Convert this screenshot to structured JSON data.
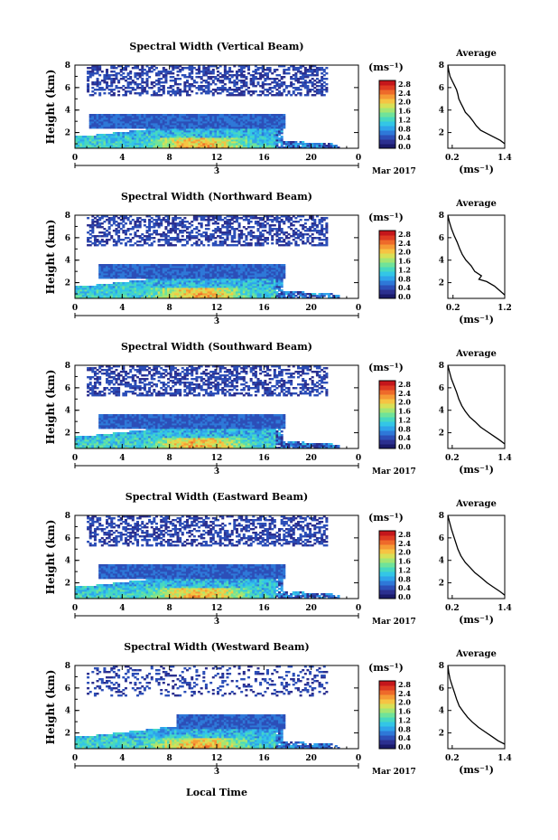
{
  "figure": {
    "common_xlabel": "Local Time",
    "date_label": "Mar 2017",
    "day_label": "3",
    "colorbar_unit": "(ms⁻¹)",
    "avg_title": "Average",
    "avg_unit": "(ms⁻¹)",
    "colormap": [
      "#2b2f8f",
      "#2c4fb8",
      "#2e78d8",
      "#2fa3ea",
      "#33c6e6",
      "#47d8c0",
      "#6fe39a",
      "#a5e673",
      "#d7e057",
      "#f6c443",
      "#f59a35",
      "#ee6a2a",
      "#de3b22",
      "#c5161b"
    ]
  },
  "chart_data": [
    {
      "type": "heatmap",
      "title": "Spectral Width (Vertical Beam)",
      "ylabel": "Height (km)",
      "x_ticks": [
        "0",
        "4",
        "8",
        "12",
        "16",
        "20",
        "0"
      ],
      "xlim": [
        0,
        24
      ],
      "y_ticks": [
        "2",
        "4",
        "6",
        "8"
      ],
      "ylim": [
        0.6,
        8.0
      ],
      "colorbar_ticks": [
        "2.8",
        "2.4",
        "2.0",
        "1.6",
        "1.2",
        "0.8",
        "0.4",
        "0.0"
      ],
      "colorbar_range": [
        0.0,
        2.8
      ],
      "show_date": true,
      "avg_profile": {
        "x_ticks": [
          "0.2",
          "1.4"
        ],
        "xlim": [
          0.1,
          1.4
        ],
        "y_ticks": [
          "2",
          "4",
          "6",
          "8"
        ],
        "ylim": [
          0.6,
          8.0
        ],
        "points": [
          [
            0.1,
            8.0
          ],
          [
            0.12,
            7.5
          ],
          [
            0.15,
            7.0
          ],
          [
            0.2,
            6.6
          ],
          [
            0.25,
            6.2
          ],
          [
            0.3,
            5.8
          ],
          [
            0.33,
            5.4
          ],
          [
            0.35,
            5.0
          ],
          [
            0.4,
            4.6
          ],
          [
            0.45,
            4.2
          ],
          [
            0.5,
            3.8
          ],
          [
            0.6,
            3.4
          ],
          [
            0.68,
            3.0
          ],
          [
            0.75,
            2.6
          ],
          [
            0.85,
            2.2
          ],
          [
            1.0,
            1.9
          ],
          [
            1.15,
            1.6
          ],
          [
            1.3,
            1.3
          ],
          [
            1.4,
            1.0
          ]
        ]
      }
    },
    {
      "type": "heatmap",
      "title": "Spectral Width (Northward Beam)",
      "ylabel": "Height (km)",
      "x_ticks": [
        "0",
        "4",
        "8",
        "12",
        "16",
        "20",
        "0"
      ],
      "xlim": [
        0,
        24
      ],
      "y_ticks": [
        "2",
        "4",
        "6",
        "8"
      ],
      "ylim": [
        0.6,
        8.0
      ],
      "colorbar_ticks": [
        "2.8",
        "2.4",
        "2.0",
        "1.6",
        "1.2",
        "0.8",
        "0.4",
        "0.0"
      ],
      "colorbar_range": [
        0.0,
        2.8
      ],
      "show_date": false,
      "avg_profile": {
        "x_ticks": [
          "0.2",
          "1.2"
        ],
        "xlim": [
          0.1,
          1.2
        ],
        "y_ticks": [
          "2",
          "4",
          "6",
          "8"
        ],
        "ylim": [
          0.6,
          8.0
        ],
        "points": [
          [
            0.1,
            8.0
          ],
          [
            0.13,
            7.4
          ],
          [
            0.17,
            6.8
          ],
          [
            0.22,
            6.2
          ],
          [
            0.28,
            5.6
          ],
          [
            0.33,
            5.0
          ],
          [
            0.38,
            4.5
          ],
          [
            0.45,
            4.0
          ],
          [
            0.55,
            3.5
          ],
          [
            0.62,
            3.0
          ],
          [
            0.75,
            2.6
          ],
          [
            0.7,
            2.3
          ],
          [
            0.85,
            2.1
          ],
          [
            1.0,
            1.7
          ],
          [
            1.1,
            1.3
          ],
          [
            1.2,
            0.9
          ]
        ]
      }
    },
    {
      "type": "heatmap",
      "title": "Spectral Width (Southward Beam)",
      "ylabel": "Height (km)",
      "x_ticks": [
        "0",
        "4",
        "8",
        "12",
        "16",
        "20",
        "0"
      ],
      "xlim": [
        0,
        24
      ],
      "y_ticks": [
        "2",
        "4",
        "6",
        "8"
      ],
      "ylim": [
        0.6,
        8.0
      ],
      "colorbar_ticks": [
        "2.8",
        "2.4",
        "2.0",
        "1.6",
        "1.2",
        "0.8",
        "0.4",
        "0.0"
      ],
      "colorbar_range": [
        0.0,
        2.8
      ],
      "show_date": true,
      "avg_profile": {
        "x_ticks": [
          "0.2",
          "1.4"
        ],
        "xlim": [
          0.1,
          1.4
        ],
        "y_ticks": [
          "2",
          "4",
          "6",
          "8"
        ],
        "ylim": [
          0.6,
          8.0
        ],
        "points": [
          [
            0.1,
            8.0
          ],
          [
            0.14,
            7.4
          ],
          [
            0.18,
            6.8
          ],
          [
            0.24,
            6.2
          ],
          [
            0.3,
            5.6
          ],
          [
            0.35,
            5.0
          ],
          [
            0.42,
            4.4
          ],
          [
            0.5,
            3.9
          ],
          [
            0.6,
            3.4
          ],
          [
            0.72,
            3.0
          ],
          [
            0.85,
            2.5
          ],
          [
            1.0,
            2.1
          ],
          [
            1.15,
            1.7
          ],
          [
            1.3,
            1.3
          ],
          [
            1.4,
            1.0
          ]
        ]
      }
    },
    {
      "type": "heatmap",
      "title": "Spectral Width (Eastward Beam)",
      "ylabel": "Height (km)",
      "x_ticks": [
        "0",
        "4",
        "8",
        "12",
        "16",
        "20",
        "0"
      ],
      "xlim": [
        0,
        24
      ],
      "y_ticks": [
        "2",
        "4",
        "6",
        "8"
      ],
      "ylim": [
        0.6,
        8.0
      ],
      "colorbar_ticks": [
        "2.8",
        "2.4",
        "2.0",
        "1.6",
        "1.2",
        "0.8",
        "0.4",
        "0.0"
      ],
      "colorbar_range": [
        0.0,
        2.8
      ],
      "show_date": true,
      "avg_profile": {
        "x_ticks": [
          "0.2",
          "1.4"
        ],
        "xlim": [
          0.1,
          1.4
        ],
        "y_ticks": [
          "2",
          "4",
          "6",
          "8"
        ],
        "ylim": [
          0.6,
          8.0
        ],
        "points": [
          [
            0.1,
            8.0
          ],
          [
            0.14,
            7.4
          ],
          [
            0.18,
            6.8
          ],
          [
            0.23,
            6.2
          ],
          [
            0.28,
            5.6
          ],
          [
            0.33,
            5.0
          ],
          [
            0.4,
            4.4
          ],
          [
            0.5,
            3.8
          ],
          [
            0.6,
            3.4
          ],
          [
            0.72,
            2.9
          ],
          [
            0.85,
            2.5
          ],
          [
            1.0,
            2.0
          ],
          [
            1.15,
            1.6
          ],
          [
            1.3,
            1.2
          ],
          [
            1.4,
            0.9
          ]
        ]
      }
    },
    {
      "type": "heatmap",
      "title": "Spectral Width (Westward Beam)",
      "ylabel": "Height (km)",
      "x_ticks": [
        "0",
        "4",
        "8",
        "12",
        "16",
        "20",
        "0"
      ],
      "xlim": [
        0,
        24
      ],
      "y_ticks": [
        "2",
        "4",
        "6",
        "8"
      ],
      "ylim": [
        0.6,
        8.0
      ],
      "colorbar_ticks": [
        "2.8",
        "2.4",
        "2.0",
        "1.6",
        "1.2",
        "0.8",
        "0.4",
        "0.0"
      ],
      "colorbar_range": [
        0.0,
        2.8
      ],
      "show_date": true,
      "avg_profile": {
        "x_ticks": [
          "0.2",
          "1.4"
        ],
        "xlim": [
          0.1,
          1.4
        ],
        "y_ticks": [
          "2",
          "4",
          "6",
          "8"
        ],
        "ylim": [
          0.6,
          8.0
        ],
        "points": [
          [
            0.1,
            8.0
          ],
          [
            0.12,
            7.4
          ],
          [
            0.15,
            6.8
          ],
          [
            0.2,
            6.2
          ],
          [
            0.25,
            5.6
          ],
          [
            0.3,
            5.0
          ],
          [
            0.36,
            4.4
          ],
          [
            0.45,
            3.9
          ],
          [
            0.55,
            3.4
          ],
          [
            0.65,
            3.0
          ],
          [
            0.8,
            2.5
          ],
          [
            0.95,
            2.1
          ],
          [
            1.1,
            1.7
          ],
          [
            1.25,
            1.3
          ],
          [
            1.4,
            1.0
          ]
        ]
      }
    }
  ]
}
